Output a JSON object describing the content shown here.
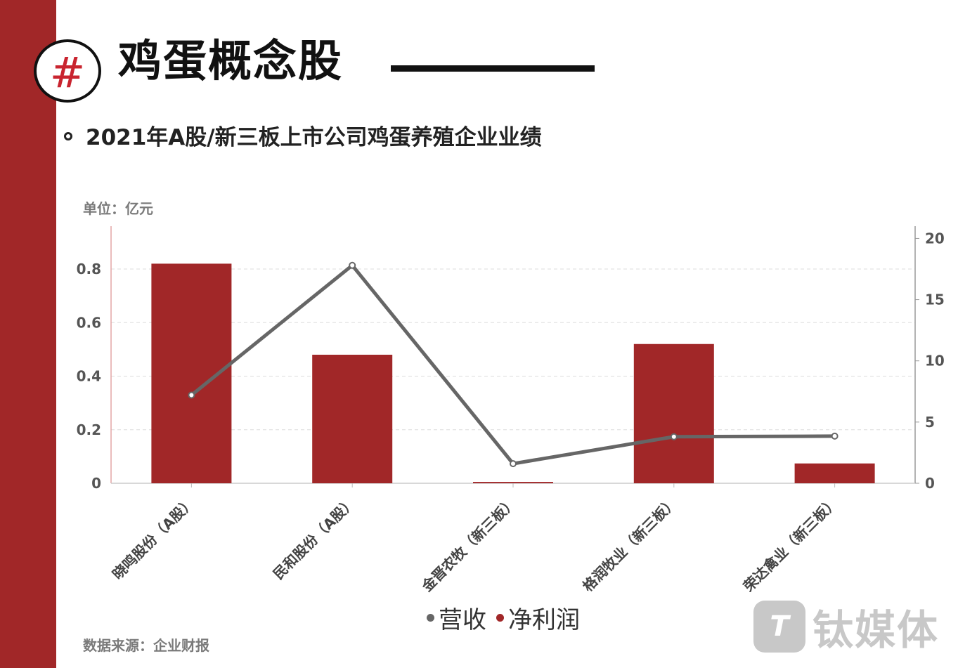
{
  "header": {
    "badge_symbol": "#",
    "title": "鸡蛋概念股",
    "subtitle": "2021年A股/新三板上市公司鸡蛋养殖企业业绩",
    "unit": "单位：亿元"
  },
  "footer": {
    "source": "数据来源：企业财报",
    "logo_mark": "T",
    "logo_text": "钛媒体"
  },
  "colors": {
    "sidebar": "#a12728",
    "bar": "#a12728",
    "line": "#666666",
    "accent_hash": "#c9242f"
  },
  "chart_data": {
    "type": "bar",
    "categories": [
      "晓鸣股份（A股）",
      "民和股份（A股）",
      "金晋农牧（新三板）",
      "格润牧业（新三板）",
      "荣达禽业（新三板）"
    ],
    "series": [
      {
        "name": "营收",
        "type": "line",
        "axis": "right",
        "color": "#666666",
        "values": [
          7.2,
          17.8,
          1.6,
          3.8,
          3.85
        ]
      },
      {
        "name": "净利润",
        "type": "bar",
        "axis": "left",
        "color": "#a12728",
        "values": [
          0.82,
          0.48,
          0.005,
          0.52,
          0.074
        ]
      }
    ],
    "left_axis": {
      "ylim": [
        0,
        0.96
      ],
      "ticks": [
        "0",
        "0.2",
        "0.4",
        "0.6",
        "0.8"
      ]
    },
    "right_axis": {
      "ylim": [
        0,
        21
      ],
      "ticks": [
        "0",
        "5",
        "10",
        "15",
        "20"
      ]
    },
    "grid": true,
    "legend_position": "bottom"
  }
}
